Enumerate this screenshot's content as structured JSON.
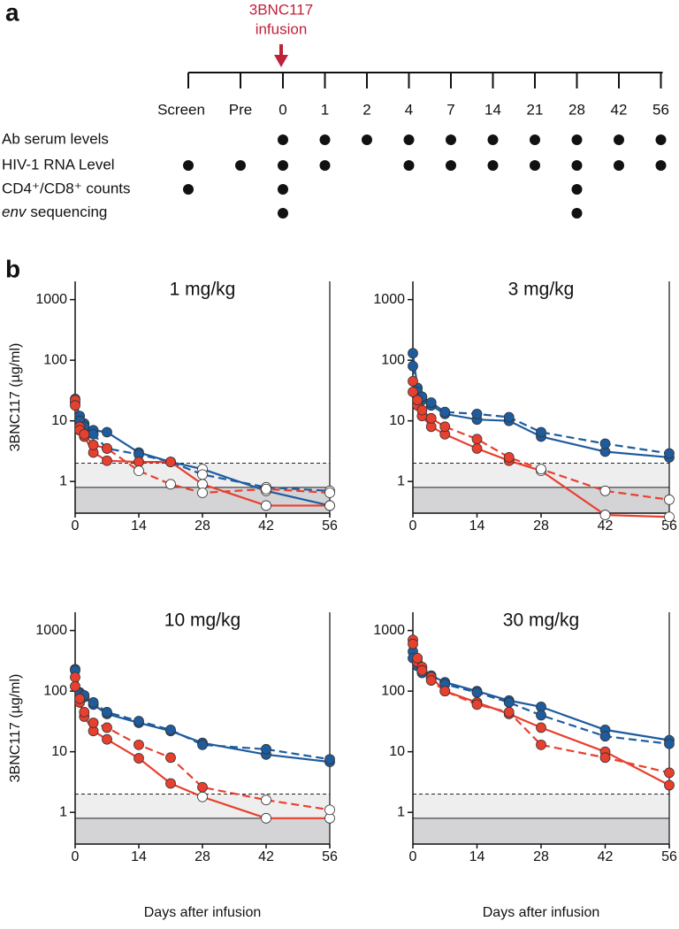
{
  "schedule": {
    "panel_label": "a",
    "arrow_label": [
      "3BNC117",
      "infusion"
    ],
    "timepoints": [
      "Screen",
      "Pre",
      "0",
      "1",
      "2",
      "4",
      "7",
      "14",
      "21",
      "28",
      "42",
      "56"
    ],
    "rows": [
      {
        "name": "Ab serum levels",
        "marks": [
          0,
          0,
          1,
          1,
          1,
          1,
          1,
          1,
          1,
          1,
          1,
          1
        ]
      },
      {
        "name": "HIV-1 RNA Level",
        "marks": [
          1,
          1,
          1,
          1,
          0,
          1,
          1,
          1,
          1,
          1,
          1,
          1
        ]
      },
      {
        "name": "CD4⁺/CD8⁺ counts",
        "marks": [
          1,
          0,
          1,
          0,
          0,
          0,
          0,
          0,
          0,
          1,
          0,
          0
        ]
      },
      {
        "name_italic": "env",
        "name": "sequencing",
        "marks": [
          0,
          0,
          1,
          0,
          0,
          0,
          0,
          0,
          0,
          1,
          0,
          0
        ]
      }
    ]
  },
  "panel_b_label": "b",
  "chart_data": [
    {
      "type": "line",
      "title": "1 mg/kg",
      "ylabel": "3BNC117 (µg/ml)",
      "log_y": true,
      "xlim": [
        0,
        56
      ],
      "xticks": [
        0,
        14,
        28,
        42,
        56
      ],
      "ylim": [
        0.3,
        2000
      ],
      "yticks": [
        1,
        10,
        100,
        1000
      ],
      "reference_lines": [
        {
          "value": 2,
          "style": "dashed"
        },
        {
          "value": 0.8,
          "style": "solid"
        }
      ],
      "x": [
        0,
        1,
        2,
        4,
        7,
        14,
        21,
        28,
        42,
        56
      ],
      "series": [
        {
          "color": "#1f5c9e",
          "dashed": false,
          "values": [
            23,
            12,
            9,
            7,
            6.5,
            3,
            2.1,
            1.6,
            0.7,
            0.4
          ]
        },
        {
          "color": "#1f5c9e",
          "dashed": true,
          "values": [
            20,
            10,
            8,
            6,
            3.5,
            2.8,
            2.1,
            1.3,
            0.8,
            0.7
          ]
        },
        {
          "color": "#e8402f",
          "dashed": false,
          "values": [
            22,
            8,
            5.5,
            3,
            2.2,
            2.1,
            2.1,
            0.9,
            0.4,
            0.4
          ]
        },
        {
          "color": "#e8402f",
          "dashed": true,
          "values": [
            18,
            7,
            6,
            4,
            3.5,
            1.5,
            0.9,
            0.65,
            0.75,
            0.65
          ]
        }
      ]
    },
    {
      "type": "line",
      "title": "3 mg/kg",
      "log_y": true,
      "xlim": [
        0,
        56
      ],
      "xticks": [
        0,
        14,
        28,
        42,
        56
      ],
      "ylim": [
        0.3,
        2000
      ],
      "yticks": [
        1,
        10,
        100,
        1000
      ],
      "reference_lines": [
        {
          "value": 2,
          "style": "dashed"
        },
        {
          "value": 0.8,
          "style": "solid"
        }
      ],
      "x": [
        0,
        1,
        2,
        4,
        7,
        14,
        21,
        28,
        42,
        56
      ],
      "series": [
        {
          "color": "#1f5c9e",
          "dashed": false,
          "values": [
            130,
            35,
            22,
            18,
            13,
            10.5,
            10,
            5.5,
            3.1,
            2.5
          ]
        },
        {
          "color": "#1f5c9e",
          "dashed": true,
          "values": [
            80,
            30,
            25,
            20,
            14,
            13,
            11.5,
            6.5,
            4.2,
            2.9
          ]
        },
        {
          "color": "#e8402f",
          "dashed": false,
          "values": [
            45,
            18,
            12,
            8,
            6,
            3.5,
            2.2,
            1.5,
            0.28,
            0.26
          ]
        },
        {
          "color": "#e8402f",
          "dashed": true,
          "values": [
            30,
            22,
            15,
            11,
            8,
            5,
            2.5,
            1.6,
            0.7,
            0.5
          ]
        }
      ]
    },
    {
      "type": "line",
      "title": "10 mg/kg",
      "ylabel": "3BNC117 (µg/ml)",
      "xlabel": "Days after infusion",
      "log_y": true,
      "xlim": [
        0,
        56
      ],
      "xticks": [
        0,
        14,
        28,
        42,
        56
      ],
      "ylim": [
        0.3,
        2000
      ],
      "yticks": [
        1,
        10,
        100,
        1000
      ],
      "reference_lines": [
        {
          "value": 2,
          "style": "dashed"
        },
        {
          "value": 0.8,
          "style": "solid"
        }
      ],
      "x": [
        0,
        1,
        2,
        4,
        7,
        14,
        21,
        28,
        42,
        56
      ],
      "series": [
        {
          "color": "#1f5c9e",
          "dashed": false,
          "values": [
            230,
            95,
            80,
            60,
            42,
            30,
            22,
            14,
            9,
            6.8
          ]
        },
        {
          "color": "#1f5c9e",
          "dashed": true,
          "values": [
            220,
            90,
            85,
            65,
            45,
            32,
            23,
            13,
            11,
            7.5
          ]
        },
        {
          "color": "#e8402f",
          "dashed": false,
          "values": [
            170,
            65,
            38,
            22,
            16,
            7.8,
            3,
            1.8,
            0.8,
            0.8
          ]
        },
        {
          "color": "#e8402f",
          "dashed": true,
          "values": [
            120,
            75,
            45,
            30,
            25,
            13,
            8,
            2.6,
            1.6,
            1.1
          ]
        }
      ]
    },
    {
      "type": "line",
      "title": "30 mg/kg",
      "xlabel": "Days after infusion",
      "log_y": true,
      "xlim": [
        0,
        56
      ],
      "xticks": [
        0,
        14,
        28,
        42,
        56
      ],
      "ylim": [
        0.3,
        2000
      ],
      "yticks": [
        1,
        10,
        100,
        1000
      ],
      "reference_lines": [
        {
          "value": 2,
          "style": "dashed"
        },
        {
          "value": 0.8,
          "style": "solid"
        }
      ],
      "x": [
        0,
        1,
        2,
        4,
        7,
        14,
        21,
        28,
        42,
        56
      ],
      "series": [
        {
          "color": "#1f5c9e",
          "dashed": false,
          "values": [
            450,
            280,
            220,
            180,
            140,
            100,
            70,
            55,
            23,
            15.5
          ]
        },
        {
          "color": "#1f5c9e",
          "dashed": true,
          "values": [
            350,
            260,
            200,
            160,
            130,
            95,
            65,
            40,
            18,
            13.5
          ]
        },
        {
          "color": "#e8402f",
          "dashed": false,
          "values": [
            700,
            300,
            250,
            170,
            100,
            65,
            42,
            25,
            10,
            2.8
          ]
        },
        {
          "color": "#e8402f",
          "dashed": true,
          "values": [
            600,
            350,
            220,
            150,
            100,
            60,
            45,
            13,
            8,
            4.5
          ]
        }
      ]
    }
  ]
}
